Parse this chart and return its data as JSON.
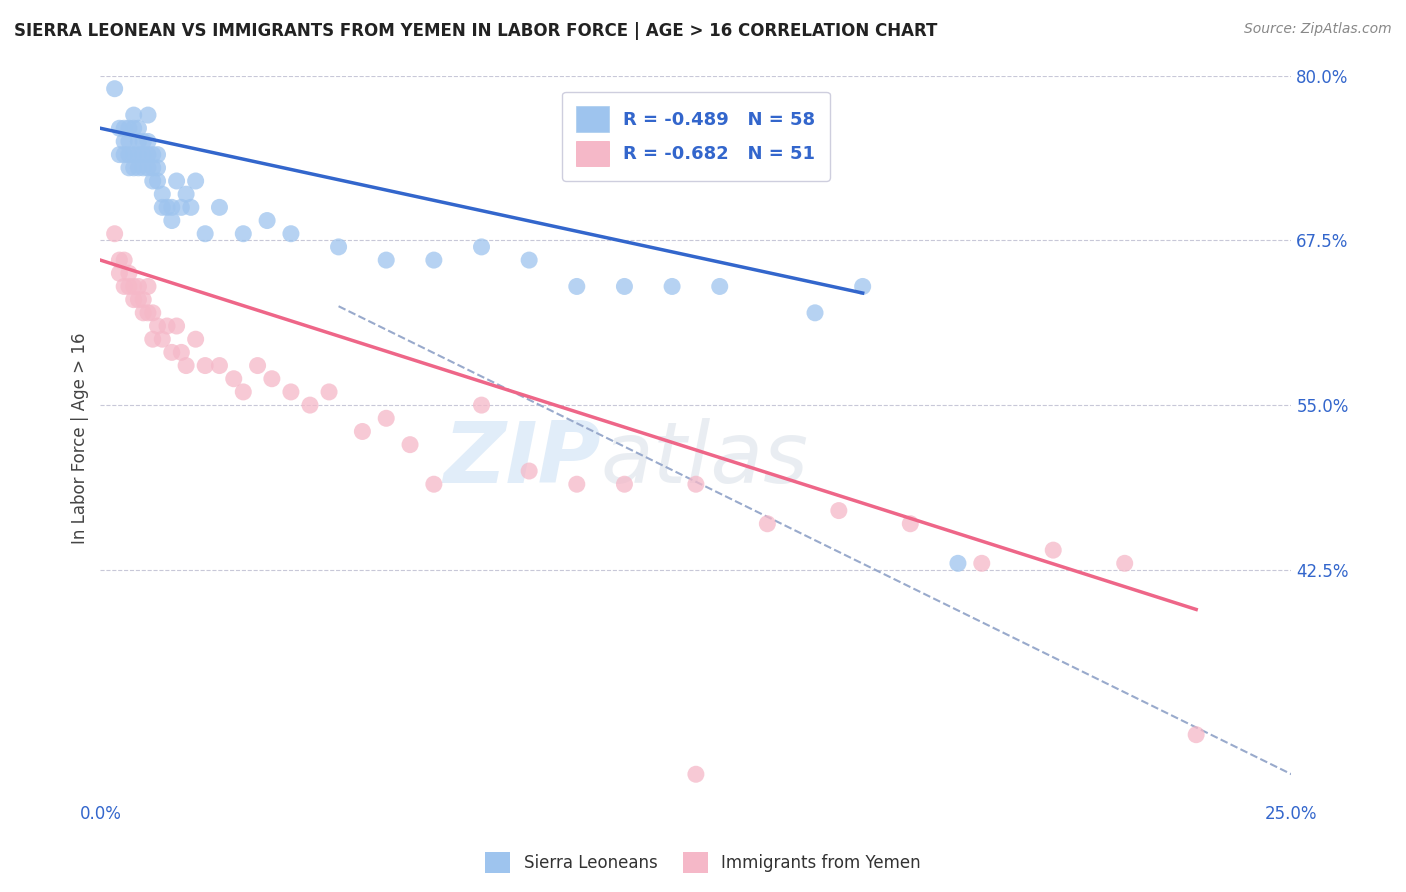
{
  "title": "SIERRA LEONEAN VS IMMIGRANTS FROM YEMEN IN LABOR FORCE | AGE > 16 CORRELATION CHART",
  "source": "Source: ZipAtlas.com",
  "ylabel": "In Labor Force | Age > 16",
  "background_color": "#ffffff",
  "grid_color": "#c8c8d8",
  "blue_legend": "R = -0.489   N = 58",
  "pink_legend": "R = -0.682   N = 51",
  "blue_color": "#9ec4ee",
  "pink_color": "#f5b8c8",
  "blue_line_color": "#3366cc",
  "pink_line_color": "#ee6688",
  "dash_color": "#99aacc",
  "xmin": 0.0,
  "xmax": 0.25,
  "ymin": 0.25,
  "ymax": 0.8,
  "x_ticks": [
    0.0,
    0.025,
    0.05,
    0.075,
    0.1,
    0.125,
    0.15,
    0.175,
    0.2,
    0.225,
    0.25
  ],
  "x_tick_labels_show": [
    "0.0%",
    "25.0%"
  ],
  "y_ticks": [
    0.425,
    0.55,
    0.675,
    0.8
  ],
  "y_tick_labels": [
    "42.5%",
    "55.0%",
    "67.5%",
    "80.0%"
  ],
  "blue_scatter_x": [
    0.003,
    0.004,
    0.004,
    0.005,
    0.005,
    0.005,
    0.006,
    0.006,
    0.006,
    0.006,
    0.007,
    0.007,
    0.007,
    0.007,
    0.008,
    0.008,
    0.008,
    0.008,
    0.009,
    0.009,
    0.009,
    0.01,
    0.01,
    0.01,
    0.01,
    0.011,
    0.011,
    0.011,
    0.012,
    0.012,
    0.012,
    0.013,
    0.013,
    0.014,
    0.015,
    0.015,
    0.016,
    0.017,
    0.018,
    0.019,
    0.02,
    0.022,
    0.025,
    0.03,
    0.035,
    0.04,
    0.05,
    0.06,
    0.07,
    0.08,
    0.09,
    0.1,
    0.11,
    0.12,
    0.13,
    0.15,
    0.16,
    0.18
  ],
  "blue_scatter_y": [
    0.79,
    0.76,
    0.74,
    0.76,
    0.75,
    0.74,
    0.75,
    0.74,
    0.73,
    0.76,
    0.74,
    0.73,
    0.76,
    0.77,
    0.73,
    0.74,
    0.75,
    0.76,
    0.73,
    0.74,
    0.75,
    0.73,
    0.74,
    0.75,
    0.77,
    0.72,
    0.73,
    0.74,
    0.72,
    0.73,
    0.74,
    0.7,
    0.71,
    0.7,
    0.69,
    0.7,
    0.72,
    0.7,
    0.71,
    0.7,
    0.72,
    0.68,
    0.7,
    0.68,
    0.69,
    0.68,
    0.67,
    0.66,
    0.66,
    0.67,
    0.66,
    0.64,
    0.64,
    0.64,
    0.64,
    0.62,
    0.64,
    0.43
  ],
  "pink_scatter_x": [
    0.003,
    0.004,
    0.004,
    0.005,
    0.005,
    0.006,
    0.006,
    0.007,
    0.007,
    0.008,
    0.008,
    0.009,
    0.009,
    0.01,
    0.01,
    0.011,
    0.011,
    0.012,
    0.013,
    0.014,
    0.015,
    0.016,
    0.017,
    0.018,
    0.02,
    0.022,
    0.025,
    0.028,
    0.03,
    0.033,
    0.036,
    0.04,
    0.044,
    0.048,
    0.055,
    0.06,
    0.065,
    0.07,
    0.08,
    0.09,
    0.1,
    0.11,
    0.125,
    0.14,
    0.155,
    0.17,
    0.185,
    0.2,
    0.215,
    0.23,
    0.125
  ],
  "pink_scatter_y": [
    0.68,
    0.66,
    0.65,
    0.66,
    0.64,
    0.65,
    0.64,
    0.64,
    0.63,
    0.63,
    0.64,
    0.62,
    0.63,
    0.62,
    0.64,
    0.6,
    0.62,
    0.61,
    0.6,
    0.61,
    0.59,
    0.61,
    0.59,
    0.58,
    0.6,
    0.58,
    0.58,
    0.57,
    0.56,
    0.58,
    0.57,
    0.56,
    0.55,
    0.56,
    0.53,
    0.54,
    0.52,
    0.49,
    0.55,
    0.5,
    0.49,
    0.49,
    0.49,
    0.46,
    0.47,
    0.46,
    0.43,
    0.44,
    0.43,
    0.3,
    0.27
  ],
  "blue_line_x": [
    0.0,
    0.16
  ],
  "blue_line_y": [
    0.76,
    0.635
  ],
  "pink_line_x": [
    0.0,
    0.23
  ],
  "pink_line_y": [
    0.66,
    0.395
  ],
  "dash_line_x": [
    0.05,
    0.25
  ],
  "dash_line_y": [
    0.625,
    0.27
  ],
  "sl_label": "Sierra Leoneans",
  "imm_label": "Immigrants from Yemen"
}
